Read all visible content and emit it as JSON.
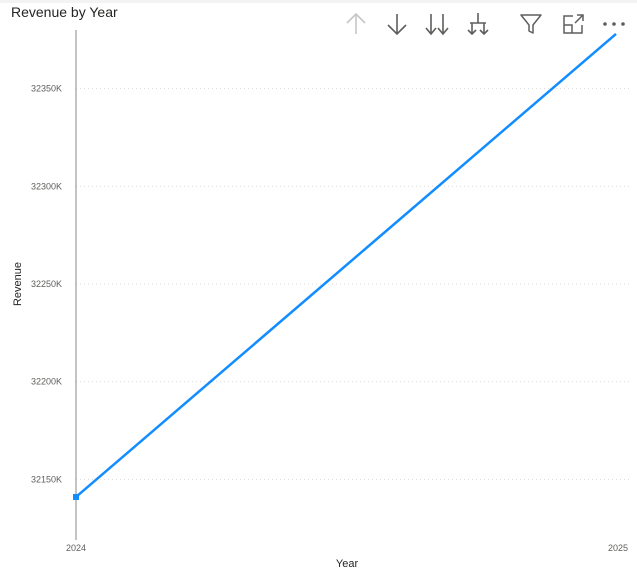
{
  "visual": {
    "title": "Revenue by Year",
    "toolbar": [
      {
        "id": "drill-up",
        "icon": "arrow-up-icon",
        "enabled": false
      },
      {
        "id": "drill-down",
        "icon": "arrow-down-icon",
        "enabled": true
      },
      {
        "id": "go-to-next-level",
        "icon": "double-arrow-down-icon",
        "enabled": true
      },
      {
        "id": "expand-next-level",
        "icon": "hierarchy-expand-icon",
        "enabled": true
      },
      {
        "id": "filter",
        "icon": "filter-icon",
        "enabled": true
      },
      {
        "id": "focus-mode",
        "icon": "focus-mode-icon",
        "enabled": true
      },
      {
        "id": "more-options",
        "icon": "more-options-icon",
        "enabled": true
      }
    ]
  },
  "colors": {
    "line": "#118DFF",
    "gridline": "#d9d9d9",
    "axis": "#8a8886",
    "icon": "#605e5c",
    "icon_disabled": "#c8c6c4"
  },
  "chart_data": {
    "type": "line",
    "title": "Revenue by Year",
    "xlabel": "Year",
    "ylabel": "Revenue",
    "x": [
      "2024",
      "2025"
    ],
    "series": [
      {
        "values": [
          32141,
          32378
        ]
      }
    ],
    "ylim": [
      32120,
      32380
    ],
    "yticks": [
      32150,
      32200,
      32250,
      32300,
      32350
    ],
    "ytick_labels": [
      "32150K",
      "32200K",
      "32250K",
      "32300K",
      "32350K"
    ],
    "grid": true,
    "legend": "none"
  }
}
